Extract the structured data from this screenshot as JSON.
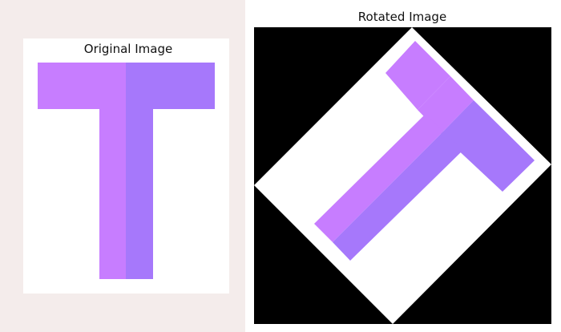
{
  "panels": {
    "original_title": "Original Image",
    "rotated_title": "Rotated Image"
  },
  "letter": {
    "glyph": "T",
    "color_light": "#c77dff",
    "color_dark": "#a678fb"
  },
  "rotation": {
    "angle_degrees": 45
  },
  "background_colors": {
    "figure": "#f4eceb",
    "rotated_fill": "#000000",
    "image": "#ffffff"
  }
}
